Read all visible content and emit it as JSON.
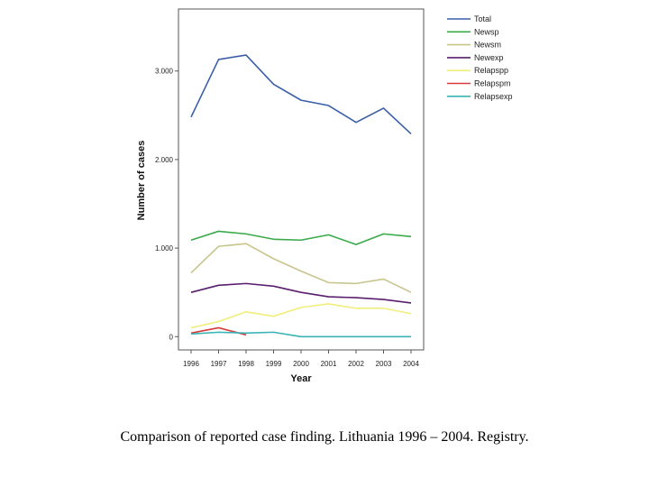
{
  "caption": "Comparison of reported case finding. Lithuania 1996 – 2004. Registry.",
  "chart_data": {
    "type": "line",
    "xlabel": "Year",
    "ylabel": "Number of cases",
    "categories": [
      "1996",
      "1997",
      "1998",
      "1999",
      "2000",
      "2001",
      "2002",
      "2003",
      "2004"
    ],
    "yticks": [
      {
        "value": 0,
        "label": "0"
      },
      {
        "value": 1000,
        "label": "1.000"
      },
      {
        "value": 2000,
        "label": "2.000"
      },
      {
        "value": 3000,
        "label": "3.000"
      }
    ],
    "ylim": [
      -150,
      3700
    ],
    "grid": false,
    "legend_position": "top-right",
    "series": [
      {
        "name": "Total",
        "color": "#3a5fa8",
        "values": [
          2480,
          3130,
          3180,
          2850,
          2670,
          2610,
          2420,
          2580,
          2290
        ]
      },
      {
        "name": "Newsp",
        "color": "#3aaa4a",
        "values": [
          1090,
          1190,
          1160,
          1100,
          1090,
          1150,
          1040,
          1160,
          1130
        ]
      },
      {
        "name": "Newsm",
        "color": "#c8c58c",
        "values": [
          720,
          1020,
          1050,
          880,
          740,
          610,
          600,
          650,
          500
        ]
      },
      {
        "name": "Newexp",
        "color": "#5a1e6e",
        "values": [
          500,
          580,
          600,
          570,
          500,
          450,
          440,
          420,
          380
        ]
      },
      {
        "name": "Relapspp",
        "color": "#f2ee7c",
        "values": [
          100,
          170,
          280,
          230,
          330,
          370,
          320,
          320,
          260
        ]
      },
      {
        "name": "Relapspm",
        "color": "#d93a3a",
        "values": [
          40,
          100,
          20,
          null,
          null,
          null,
          null,
          null,
          null
        ]
      },
      {
        "name": "Relapsexp",
        "color": "#3ab3b6",
        "values": [
          30,
          50,
          40,
          50,
          0,
          0,
          0,
          0,
          0
        ]
      }
    ]
  }
}
